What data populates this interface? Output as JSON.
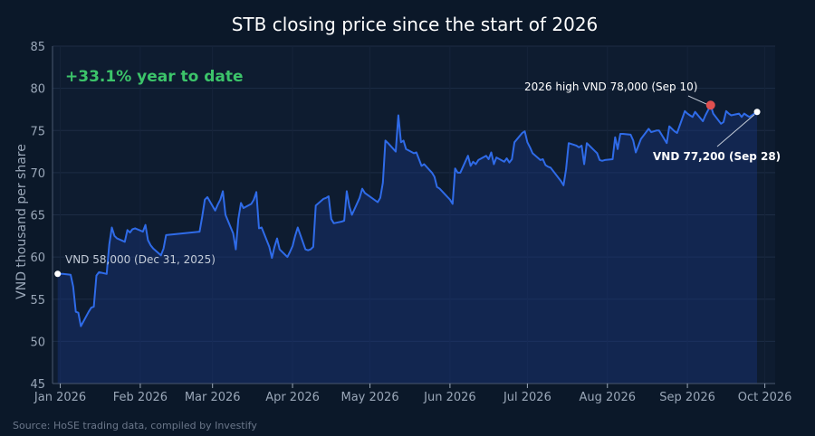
{
  "header": {
    "title": "STB closing price since the start of 2026"
  },
  "ytd_label": "+33.1% year to date",
  "source": "Source: HoSE trading data, compiled by Investify",
  "colors": {
    "background": "#0b1829",
    "plot_background": "#0e1c30",
    "line": "#2f6be8",
    "area_fill": "#1a3a8c",
    "ytd_text": "#3cc46a",
    "high_marker": "#e05050",
    "end_marker": "#ffffff"
  },
  "chart_data": {
    "type": "area",
    "title": "STB closing price since the start of 2026",
    "ylabel": "VND thousand per share",
    "xlabel": "",
    "ylim": [
      45,
      85
    ],
    "xlim": [
      "2025-12-29",
      "2026-10-05"
    ],
    "yticks": [
      "45",
      "50",
      "55",
      "60",
      "65",
      "70",
      "75",
      "80",
      "85"
    ],
    "xticks": [
      {
        "date": "2026-01-01",
        "label": "Jan 2026"
      },
      {
        "date": "2026-02-01",
        "label": "Feb 2026"
      },
      {
        "date": "2026-03-01",
        "label": "Mar 2026"
      },
      {
        "date": "2026-04-01",
        "label": "Apr 2026"
      },
      {
        "date": "2026-05-01",
        "label": "May 2026"
      },
      {
        "date": "2026-06-01",
        "label": "Jun 2026"
      },
      {
        "date": "2026-07-01",
        "label": "Jul 2026"
      },
      {
        "date": "2026-08-01",
        "label": "Aug 2026"
      },
      {
        "date": "2026-09-01",
        "label": "Sep 2026"
      },
      {
        "date": "2026-10-01",
        "label": "Oct 2026"
      }
    ],
    "grid": true,
    "series": [
      {
        "points": [
          [
            "2025-12-31",
            58.0
          ],
          [
            "2026-01-02",
            58.0
          ],
          [
            "2026-01-05",
            57.9
          ],
          [
            "2026-01-06",
            56.5
          ],
          [
            "2026-01-07",
            53.5
          ],
          [
            "2026-01-08",
            53.4
          ],
          [
            "2026-01-09",
            51.8
          ],
          [
            "2026-01-12",
            53.5
          ],
          [
            "2026-01-13",
            54.0
          ],
          [
            "2026-01-14",
            54.1
          ],
          [
            "2026-01-15",
            57.8
          ],
          [
            "2026-01-16",
            58.2
          ],
          [
            "2026-01-19",
            58.0
          ],
          [
            "2026-01-20",
            61.5
          ],
          [
            "2026-01-21",
            63.5
          ],
          [
            "2026-01-22",
            62.5
          ],
          [
            "2026-01-23",
            62.2
          ],
          [
            "2026-01-26",
            61.8
          ],
          [
            "2026-01-27",
            63.2
          ],
          [
            "2026-01-28",
            62.9
          ],
          [
            "2026-01-29",
            63.3
          ],
          [
            "2026-01-30",
            63.4
          ],
          [
            "2026-02-02",
            63.0
          ],
          [
            "2026-02-03",
            63.8
          ],
          [
            "2026-02-04",
            62.0
          ],
          [
            "2026-02-05",
            61.4
          ],
          [
            "2026-02-06",
            61.0
          ],
          [
            "2026-02-09",
            60.2
          ],
          [
            "2026-02-10",
            61.0
          ],
          [
            "2026-02-11",
            62.6
          ],
          [
            "2026-02-24",
            63.0
          ],
          [
            "2026-02-25",
            64.8
          ],
          [
            "2026-02-26",
            66.8
          ],
          [
            "2026-02-27",
            67.1
          ],
          [
            "2026-03-02",
            65.5
          ],
          [
            "2026-03-03",
            66.2
          ],
          [
            "2026-03-04",
            66.8
          ],
          [
            "2026-03-05",
            67.8
          ],
          [
            "2026-03-06",
            65.0
          ],
          [
            "2026-03-09",
            62.8
          ],
          [
            "2026-03-10",
            60.9
          ],
          [
            "2026-03-11",
            64.5
          ],
          [
            "2026-03-12",
            66.4
          ],
          [
            "2026-03-13",
            65.8
          ],
          [
            "2026-03-16",
            66.3
          ],
          [
            "2026-03-17",
            66.8
          ],
          [
            "2026-03-18",
            67.7
          ],
          [
            "2026-03-19",
            63.4
          ],
          [
            "2026-03-20",
            63.5
          ],
          [
            "2026-03-23",
            61.2
          ],
          [
            "2026-03-24",
            59.9
          ],
          [
            "2026-03-25",
            61.2
          ],
          [
            "2026-03-26",
            62.2
          ],
          [
            "2026-03-27",
            60.9
          ],
          [
            "2026-03-30",
            60.0
          ],
          [
            "2026-03-31",
            60.6
          ],
          [
            "2026-04-01",
            61.3
          ],
          [
            "2026-04-02",
            62.5
          ],
          [
            "2026-04-03",
            63.5
          ],
          [
            "2026-04-06",
            60.9
          ],
          [
            "2026-04-07",
            60.8
          ],
          [
            "2026-04-08",
            60.9
          ],
          [
            "2026-04-09",
            61.2
          ],
          [
            "2026-04-10",
            66.1
          ],
          [
            "2026-04-13",
            66.9
          ],
          [
            "2026-04-14",
            67.0
          ],
          [
            "2026-04-15",
            67.2
          ],
          [
            "2026-04-16",
            64.5
          ],
          [
            "2026-04-17",
            64.0
          ],
          [
            "2026-04-20",
            64.2
          ],
          [
            "2026-04-21",
            64.3
          ],
          [
            "2026-04-22",
            67.8
          ],
          [
            "2026-04-23",
            66.0
          ],
          [
            "2026-04-24",
            65.0
          ],
          [
            "2026-04-27",
            67.0
          ],
          [
            "2026-04-28",
            68.1
          ],
          [
            "2026-04-29",
            67.6
          ],
          [
            "2026-05-04",
            66.5
          ],
          [
            "2026-05-05",
            67.0
          ],
          [
            "2026-05-06",
            68.8
          ],
          [
            "2026-05-07",
            73.8
          ],
          [
            "2026-05-08",
            73.5
          ],
          [
            "2026-05-11",
            72.5
          ],
          [
            "2026-05-12",
            76.8
          ],
          [
            "2026-05-13",
            73.6
          ],
          [
            "2026-05-14",
            73.8
          ],
          [
            "2026-05-15",
            72.8
          ],
          [
            "2026-05-18",
            72.3
          ],
          [
            "2026-05-19",
            72.4
          ],
          [
            "2026-05-20",
            71.6
          ],
          [
            "2026-05-21",
            70.8
          ],
          [
            "2026-05-22",
            71.0
          ],
          [
            "2026-05-25",
            70.0
          ],
          [
            "2026-05-26",
            69.5
          ],
          [
            "2026-05-27",
            68.3
          ],
          [
            "2026-05-28",
            68.1
          ],
          [
            "2026-06-01",
            66.8
          ],
          [
            "2026-06-02",
            66.3
          ],
          [
            "2026-06-03",
            70.5
          ],
          [
            "2026-06-04",
            70.0
          ],
          [
            "2026-06-05",
            70.0
          ],
          [
            "2026-06-08",
            72.0
          ],
          [
            "2026-06-09",
            70.8
          ],
          [
            "2026-06-10",
            71.3
          ],
          [
            "2026-06-11",
            71.0
          ],
          [
            "2026-06-12",
            71.5
          ],
          [
            "2026-06-15",
            72.0
          ],
          [
            "2026-06-16",
            71.6
          ],
          [
            "2026-06-17",
            72.4
          ],
          [
            "2026-06-18",
            71.0
          ],
          [
            "2026-06-19",
            71.8
          ],
          [
            "2026-06-22",
            71.3
          ],
          [
            "2026-06-23",
            71.7
          ],
          [
            "2026-06-24",
            71.2
          ],
          [
            "2026-06-25",
            71.6
          ],
          [
            "2026-06-26",
            73.6
          ],
          [
            "2026-06-29",
            74.7
          ],
          [
            "2026-06-30",
            74.9
          ],
          [
            "2026-07-01",
            73.6
          ],
          [
            "2026-07-02",
            73.0
          ],
          [
            "2026-07-03",
            72.3
          ],
          [
            "2026-07-06",
            71.5
          ],
          [
            "2026-07-07",
            71.6
          ],
          [
            "2026-07-08",
            70.9
          ],
          [
            "2026-07-09",
            70.7
          ],
          [
            "2026-07-10",
            70.6
          ],
          [
            "2026-07-13",
            69.4
          ],
          [
            "2026-07-14",
            69.0
          ],
          [
            "2026-07-15",
            68.5
          ],
          [
            "2026-07-16",
            70.4
          ],
          [
            "2026-07-17",
            73.5
          ],
          [
            "2026-07-20",
            73.2
          ],
          [
            "2026-07-21",
            73.0
          ],
          [
            "2026-07-22",
            73.2
          ],
          [
            "2026-07-23",
            71.0
          ],
          [
            "2026-07-24",
            73.5
          ],
          [
            "2026-07-27",
            72.6
          ],
          [
            "2026-07-28",
            72.3
          ],
          [
            "2026-07-29",
            71.5
          ],
          [
            "2026-07-30",
            71.4
          ],
          [
            "2026-07-31",
            71.5
          ],
          [
            "2026-08-03",
            71.6
          ],
          [
            "2026-08-04",
            74.2
          ],
          [
            "2026-08-05",
            72.8
          ],
          [
            "2026-08-06",
            74.6
          ],
          [
            "2026-08-07",
            74.6
          ],
          [
            "2026-08-10",
            74.5
          ],
          [
            "2026-08-11",
            73.8
          ],
          [
            "2026-08-12",
            72.4
          ],
          [
            "2026-08-13",
            73.2
          ],
          [
            "2026-08-14",
            74.0
          ],
          [
            "2026-08-17",
            75.2
          ],
          [
            "2026-08-18",
            74.8
          ],
          [
            "2026-08-19",
            74.9
          ],
          [
            "2026-08-20",
            75.0
          ],
          [
            "2026-08-21",
            75.0
          ],
          [
            "2026-08-24",
            73.5
          ],
          [
            "2026-08-25",
            75.5
          ],
          [
            "2026-08-26",
            75.2
          ],
          [
            "2026-08-27",
            74.9
          ],
          [
            "2026-08-28",
            74.7
          ],
          [
            "2026-08-31",
            77.3
          ],
          [
            "2026-09-01",
            77.0
          ],
          [
            "2026-09-02",
            76.8
          ],
          [
            "2026-09-03",
            76.6
          ],
          [
            "2026-09-04",
            77.2
          ],
          [
            "2026-09-07",
            76.1
          ],
          [
            "2026-09-08",
            76.8
          ],
          [
            "2026-09-10",
            78.0
          ],
          [
            "2026-09-11",
            77.0
          ],
          [
            "2026-09-14",
            75.8
          ],
          [
            "2026-09-15",
            76.0
          ],
          [
            "2026-09-16",
            77.3
          ],
          [
            "2026-09-17",
            77.0
          ],
          [
            "2026-09-18",
            76.8
          ],
          [
            "2026-09-21",
            77.0
          ],
          [
            "2026-09-22",
            76.6
          ],
          [
            "2026-09-23",
            77.0
          ],
          [
            "2026-09-24",
            76.8
          ],
          [
            "2026-09-25",
            76.6
          ],
          [
            "2026-09-28",
            77.2
          ]
        ]
      }
    ],
    "annotations": [
      {
        "id": "start",
        "date": "2025-12-31",
        "value": 58.0,
        "text": "VND 58,000 (Dec 31, 2025)"
      },
      {
        "id": "high",
        "date": "2026-09-10",
        "value": 78.0,
        "text": "2026 high VND 78,000 (Sep 10)"
      },
      {
        "id": "end",
        "date": "2026-09-28",
        "value": 77.2,
        "text": "VND 77,200 (Sep 28)"
      }
    ]
  }
}
